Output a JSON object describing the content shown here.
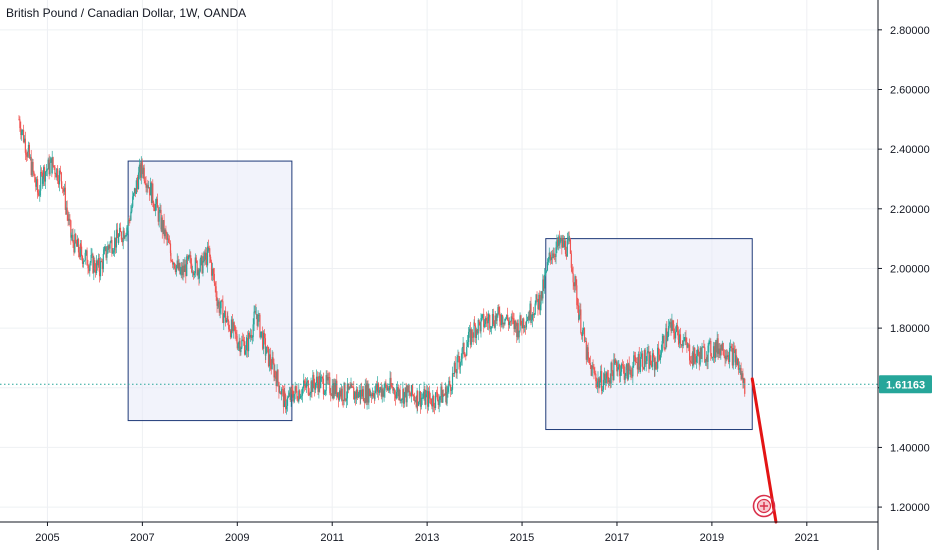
{
  "title": "British Pound / Canadian Dollar, 1W, OANDA",
  "colors": {
    "up": "#26a69a",
    "down": "#ef5350",
    "grid": "#eef0f3",
    "axis": "#131722",
    "box_stroke": "#1e3a78",
    "box_fill": "#e8eaf8",
    "current_price": "#26a69a",
    "forecast_line": "#e31414"
  },
  "chart_data": {
    "type": "candlestick",
    "x_ticks": [
      "2005",
      "2007",
      "2009",
      "2011",
      "2013",
      "2015",
      "2017",
      "2019",
      "2021"
    ],
    "y_ticks": [
      "1.20000",
      "1.40000",
      "1.60000",
      "1.80000",
      "2.00000",
      "2.20000",
      "2.40000",
      "2.60000",
      "2.80000"
    ],
    "y_tick_values": [
      1.2,
      1.4,
      1.6,
      1.8,
      2.0,
      2.2,
      2.4,
      2.6,
      2.8
    ],
    "x_range": [
      2004.0,
      2022.5
    ],
    "y_range": [
      1.15,
      2.9
    ],
    "current_price": 1.61163,
    "current_price_label": "1.61163",
    "series": [
      {
        "x": [
          2004.4,
          2004.6,
          2004.8,
          2004.9,
          2005.1,
          2005.3,
          2005.5,
          2005.7,
          2005.9,
          2006.1,
          2006.3,
          2006.5,
          2006.7,
          2006.9,
          2007.0,
          2007.2,
          2007.4,
          2007.6,
          2007.8,
          2008.0,
          2008.2,
          2008.4,
          2008.6,
          2008.8,
          2009.0,
          2009.2,
          2009.4,
          2009.6,
          2009.8,
          2010.0,
          2010.2,
          2010.4,
          2010.7,
          2011.0,
          2011.3,
          2011.6,
          2011.9,
          2012.2,
          2012.5,
          2012.8,
          2013.1,
          2013.4,
          2013.7,
          2014.0,
          2014.3,
          2014.6,
          2014.9,
          2015.2,
          2015.4,
          2015.6,
          2015.8,
          2016.0,
          2016.2,
          2016.4,
          2016.6,
          2016.8,
          2017.0,
          2017.2,
          2017.5,
          2017.8,
          2018.1,
          2018.3,
          2018.6,
          2018.9,
          2019.2,
          2019.5,
          2019.7
        ],
        "y": [
          2.5,
          2.38,
          2.25,
          2.32,
          2.35,
          2.3,
          2.1,
          2.05,
          2.02,
          2.0,
          2.08,
          2.1,
          2.15,
          2.3,
          2.34,
          2.25,
          2.15,
          2.05,
          1.98,
          2.02,
          2.0,
          2.05,
          1.88,
          1.82,
          1.76,
          1.74,
          1.85,
          1.72,
          1.65,
          1.55,
          1.58,
          1.6,
          1.62,
          1.6,
          1.58,
          1.58,
          1.59,
          1.6,
          1.58,
          1.57,
          1.56,
          1.58,
          1.7,
          1.8,
          1.83,
          1.84,
          1.8,
          1.86,
          1.9,
          2.05,
          2.08,
          2.07,
          1.85,
          1.68,
          1.62,
          1.63,
          1.68,
          1.65,
          1.7,
          1.68,
          1.8,
          1.78,
          1.7,
          1.72,
          1.74,
          1.7,
          1.6
        ]
      }
    ],
    "annotations": [
      {
        "type": "rectangle",
        "x0": 2006.7,
        "x1": 2010.15,
        "y0": 1.49,
        "y1": 2.36
      },
      {
        "type": "rectangle",
        "x0": 2015.5,
        "x1": 2019.85,
        "y0": 1.46,
        "y1": 2.1
      },
      {
        "type": "line",
        "x0": 2019.85,
        "y0": 1.63,
        "x1": 2020.35,
        "y1": 1.15
      }
    ]
  }
}
